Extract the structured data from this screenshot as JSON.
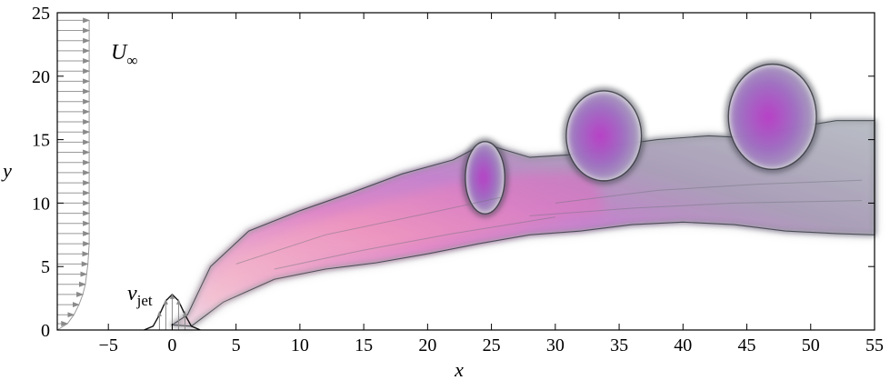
{
  "chart_data": {
    "type": "flow-visualization",
    "xlabel": "x",
    "ylabel": "y",
    "xlim": [
      -9,
      55
    ],
    "ylim": [
      0,
      25
    ],
    "xticks": [
      -5,
      0,
      5,
      10,
      15,
      20,
      25,
      30,
      35,
      40,
      45,
      50,
      55
    ],
    "yticks": [
      0,
      5,
      10,
      15,
      20,
      25
    ],
    "xtick_labels": [
      "−5",
      "0",
      "5",
      "10",
      "15",
      "20",
      "25",
      "30",
      "35",
      "40",
      "45",
      "50",
      "55"
    ],
    "ytick_labels": [
      "0",
      "5",
      "10",
      "15",
      "20",
      "25"
    ],
    "annotations": {
      "freestream_symbol": "U",
      "freestream_sub": "∞",
      "jet_symbol": "v",
      "jet_sub": "jet"
    },
    "freestream_profile": {
      "x0": -9,
      "y_values": [
        0.5,
        1.2,
        2,
        2.8,
        3.6,
        4.4,
        5.2,
        6,
        6.8,
        7.6,
        8.4,
        9.2,
        10,
        10.8,
        11.6,
        12.4,
        13.2,
        14,
        14.8,
        15.6,
        16.4,
        17.2,
        18,
        18.8,
        19.6,
        20.4,
        21.2,
        22,
        22.8,
        23.6,
        24.4
      ],
      "edge_x": [
        -8.2,
        -7.7,
        -7.3,
        -7.0,
        -6.8,
        -6.7,
        -6.6,
        -6.55,
        -6.5,
        -6.5,
        -6.5,
        -6.5,
        -6.5,
        -6.5,
        -6.5,
        -6.5,
        -6.5,
        -6.5,
        -6.5,
        -6.5,
        -6.5,
        -6.5,
        -6.5,
        -6.5,
        -6.5,
        -6.5,
        -6.5,
        -6.5,
        -6.5,
        -6.5,
        -6.5
      ]
    },
    "jet_profile": {
      "x": [
        -2.2,
        -1.5,
        -1.0,
        -0.5,
        0,
        0.5,
        1.0,
        1.5,
        2.2
      ],
      "y": [
        0.0,
        0.3,
        1.2,
        2.3,
        2.8,
        2.3,
        1.2,
        0.3,
        0.0
      ],
      "arrow_x": [
        -1.0,
        -0.5,
        0,
        0.5,
        1.0
      ]
    },
    "plume": {
      "lower_edge": [
        [
          1.5,
          0.3
        ],
        [
          4,
          2.2
        ],
        [
          8,
          4.0
        ],
        [
          12,
          4.8
        ],
        [
          16,
          5.3
        ],
        [
          20,
          6.0
        ],
        [
          24,
          6.8
        ],
        [
          28,
          7.5
        ],
        [
          32,
          7.8
        ],
        [
          36,
          8.3
        ],
        [
          40,
          8.5
        ],
        [
          44,
          8.3
        ],
        [
          48,
          7.8
        ],
        [
          52,
          7.6
        ],
        [
          55,
          7.5
        ]
      ],
      "upper_edge": [
        [
          55,
          16.5
        ],
        [
          52,
          16.5
        ],
        [
          49,
          16.0
        ],
        [
          46,
          15.4
        ],
        [
          44,
          15.2
        ],
        [
          42,
          15.3
        ],
        [
          38,
          15.0
        ],
        [
          35,
          14.6
        ],
        [
          31,
          13.8
        ],
        [
          28,
          13.6
        ],
        [
          25,
          14.5
        ],
        [
          23.5,
          14.2
        ],
        [
          22,
          13.4
        ],
        [
          18,
          12.3
        ],
        [
          14,
          10.8
        ],
        [
          10,
          9.4
        ],
        [
          6,
          7.8
        ],
        [
          3,
          5.0
        ],
        [
          1.2,
          1.2
        ],
        [
          0,
          0.4
        ]
      ],
      "vortices": [
        {
          "cx": 24.5,
          "cy": 12.0,
          "rx": 1.4,
          "ry": 2.7
        },
        {
          "cx": 33.8,
          "cy": 15.3,
          "rx": 2.8,
          "ry": 3.4
        },
        {
          "cx": 47.0,
          "cy": 16.8,
          "rx": 3.3,
          "ry": 4.0
        }
      ]
    }
  }
}
